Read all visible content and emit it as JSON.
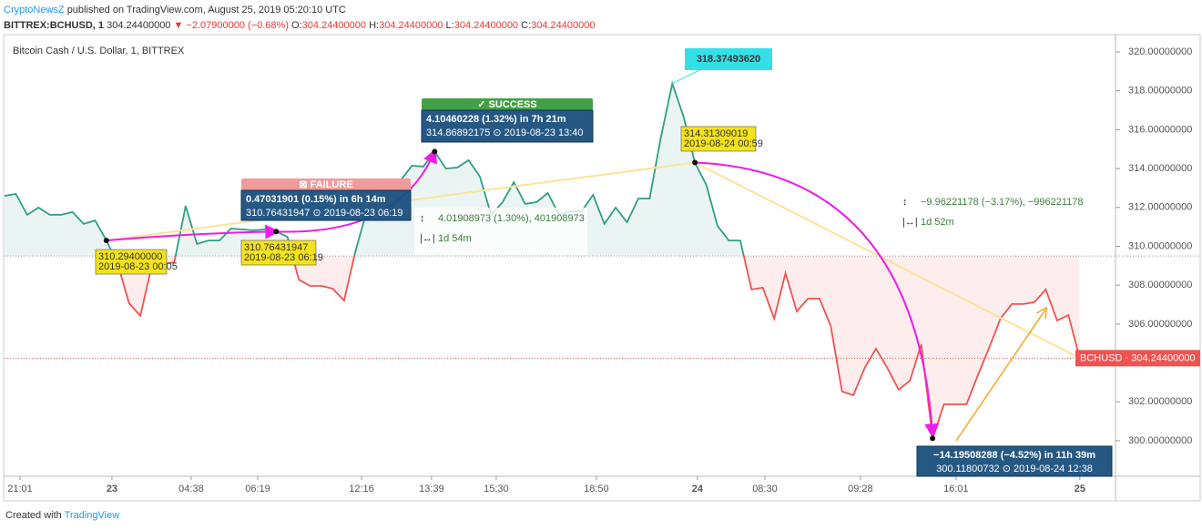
{
  "header": {
    "publisher": "CryptoNewsZ",
    "published": "published on TradingView.com, August 25, 2019 05:20:10 UTC",
    "symbol": "BITTREX:BCHUSD, 1",
    "last": "304.24400000",
    "change": "▼ −2.07900000 (−0.68%)",
    "open_label": "O:",
    "open": "304.24400000",
    "high_label": "H:",
    "high": "304.24400000",
    "low_label": "L:",
    "low": "304.24400000",
    "close_label": "C:",
    "close": "304.24400000"
  },
  "chart_data": {
    "type": "line",
    "title": "Bitcoin Cash / U.S. Dollar, 1, BITTREX",
    "values": [
      312.6,
      312.69,
      311.62,
      311.99,
      311.62,
      311.62,
      311.76,
      311.15,
      311.33,
      310.3,
      309.09,
      307.07,
      306.42,
      308.99,
      309.09,
      309.18,
      312.08,
      310.12,
      310.3,
      310.3,
      310.91,
      310.87,
      310.82,
      310.87,
      310.76,
      310.49,
      308.29,
      307.96,
      307.96,
      307.82,
      307.21,
      309.74,
      311.8,
      313.3,
      313.44,
      313.4,
      314.15,
      314.1,
      314.87,
      314.0,
      314.05,
      314.43,
      313.58,
      311.62,
      312.27,
      313.3,
      312.18,
      312.27,
      312.74,
      311.62,
      311.8,
      311.8,
      312.65,
      311.15,
      311.99,
      311.24,
      312.46,
      312.46,
      315.64,
      318.37,
      316.67,
      314.31,
      313.16,
      311.05,
      310.3,
      310.3,
      307.78,
      307.87,
      306.28,
      308.62,
      306.65,
      307.31,
      307.31,
      305.9,
      302.53,
      302.34,
      303.75,
      304.73,
      303.75,
      302.62,
      303.09,
      304.96,
      300.12,
      301.87,
      301.87,
      301.87,
      303.37,
      304.78,
      306.28,
      307.03,
      307.03,
      307.12,
      307.78,
      306.18,
      306.46,
      304.24
    ],
    "color_above": "#2e9e86",
    "color_below": "#ef5350",
    "baseline": 309.5,
    "xlim": [
      0,
      98.16
    ],
    "xticks": [
      {
        "value": 1.37,
        "label": "21:01"
      },
      {
        "value": 9.49,
        "label": "23"
      },
      {
        "value": 16.49,
        "label": "04:38"
      },
      {
        "value": 22.37,
        "label": "06:19"
      },
      {
        "value": 31.54,
        "label": "12:16"
      },
      {
        "value": 37.73,
        "label": "13:39"
      },
      {
        "value": 43.44,
        "label": "15:30"
      },
      {
        "value": 52.29,
        "label": "18:50"
      },
      {
        "value": 61.22,
        "label": "24"
      },
      {
        "value": 67.18,
        "label": "08:30"
      },
      {
        "value": 75.62,
        "label": "09:28"
      },
      {
        "value": 84.07,
        "label": "16:01"
      },
      {
        "value": 95.01,
        "label": "25"
      }
    ],
    "ylim": [
      298.17,
      320.89
    ],
    "yticks": [
      {
        "value": 300,
        "label": "300.00000000"
      },
      {
        "value": 302,
        "label": "302.00000000"
      },
      {
        "value": 304,
        "label": "304.00000000"
      },
      {
        "value": 306,
        "label": "306.00000000"
      },
      {
        "value": 308,
        "label": "308.00000000"
      },
      {
        "value": 310,
        "label": "310.00000000"
      },
      {
        "value": 312,
        "label": "312.00000000"
      },
      {
        "value": 314,
        "label": "314.00000000"
      },
      {
        "value": 316,
        "label": "316.00000000"
      },
      {
        "value": 318,
        "label": "318.00000000"
      },
      {
        "value": 320,
        "label": "320.00000000"
      }
    ],
    "last_price": {
      "name": "BCHUSD",
      "value": 304.244,
      "label": "304.24400000"
    },
    "annotations": [
      {
        "lines": [
          "310.29400000",
          "2019-08-23 00:05"
        ]
      },
      {
        "lines": [
          "310.76431947",
          "2019-08-23 06:19"
        ]
      },
      {
        "lines": [
          "314.31309019",
          "2019-08-24 00:59"
        ]
      },
      {
        "lines": [
          "318.37493620"
        ]
      },
      {
        "header": "⊠ FAILURE",
        "lines": [
          "0.47031901 (0.15%) in 6h 14m",
          "310.76431947 ⊙ 2019-08-23 06:19"
        ]
      },
      {
        "header": "✓ SUCCESS",
        "lines": [
          "4.10460228 (1.32%) in 7h 21m",
          "314.86892175 ⊙ 2019-08-23 13:40"
        ]
      },
      {
        "lines": [
          "4.01908973 (1.30%), 401908973",
          "1d 54m"
        ]
      },
      {
        "lines": [
          "−9.96221178 (−3.17%), −996221178",
          "1d 52m"
        ]
      },
      {
        "lines": [
          "−14.19508288 (−4.52%) in 11h 39m",
          "300.11800732 ⊙ 2019-08-24 12:38"
        ]
      }
    ]
  },
  "footer": {
    "created": "Created with",
    "brand": "TradingView"
  }
}
